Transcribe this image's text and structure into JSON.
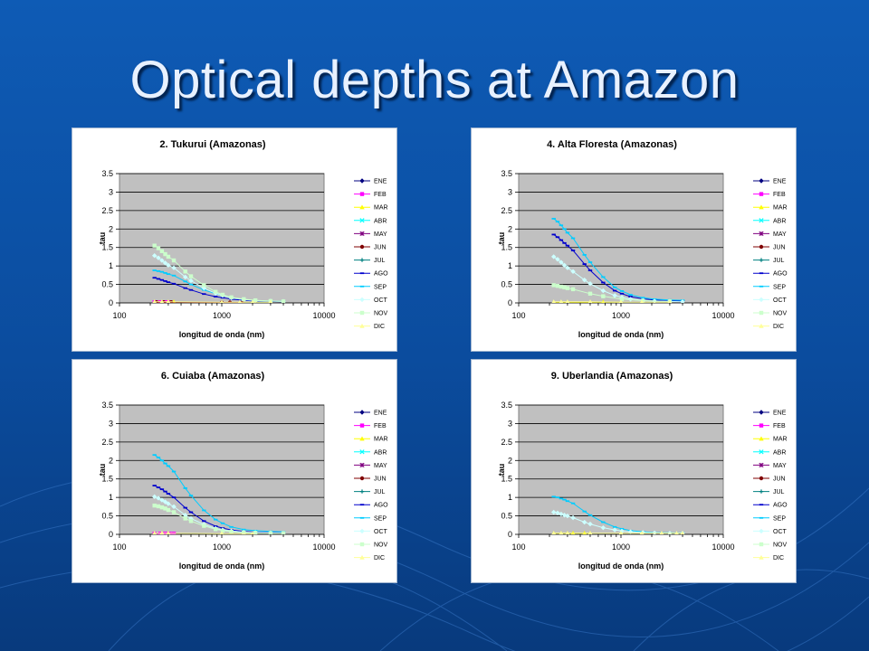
{
  "title": "Optical depths at Amazon",
  "colors": {
    "background": "#0b4c9e",
    "title_text": "#e8f1ff",
    "plot_area": "#c0c0c0"
  },
  "chart_data": [
    {
      "type": "scatter",
      "title": "2. Tukurui (Amazonas)",
      "xlabel": "longitud de onda (nm)",
      "ylabel": "tau",
      "xscale": "log",
      "xlim": [
        100,
        10000
      ],
      "ylim": [
        0,
        3.5
      ],
      "x_ticks": [
        "100",
        "1000",
        "10000"
      ],
      "y_ticks": [
        "0",
        "0.5",
        "1",
        "1.5",
        "2",
        "2.5",
        "3",
        "3.5"
      ],
      "legend": [
        "ENE",
        "FEB",
        "MAR",
        "ABR",
        "MAY",
        "JUN",
        "JUL",
        "AGO",
        "SEP",
        "OCT",
        "NOV",
        "DIC"
      ],
      "legend_position": "right",
      "series": [
        {
          "name": "FEB",
          "color": "#ff00ff",
          "marker": "square",
          "x": [
            220,
            250,
            280,
            300
          ],
          "values": [
            0.02,
            0.02,
            0.02,
            0.02
          ]
        },
        {
          "name": "MAR",
          "color": "#ffff00",
          "marker": "triangle",
          "x": [
            220,
            260,
            300,
            340
          ],
          "values": [
            0.03,
            0.03,
            0.03,
            0.03
          ]
        },
        {
          "name": "JUN",
          "color": "#800000",
          "marker": "circle",
          "x": [
            230,
            270,
            320,
            1000,
            1200,
            1600
          ],
          "values": [
            0.02,
            0.02,
            0.02,
            0.01,
            0.01,
            0.01
          ]
        },
        {
          "name": "AGO",
          "color": "#0000cc",
          "marker": "dash",
          "x": [
            220,
            240,
            260,
            280,
            300,
            340,
            440,
            500,
            670,
            870,
            1020,
            1240,
            1640,
            2130,
            3000,
            4000
          ],
          "values": [
            0.68,
            0.65,
            0.62,
            0.59,
            0.56,
            0.52,
            0.4,
            0.35,
            0.24,
            0.17,
            0.14,
            0.1,
            0.07,
            0.05,
            0.04,
            0.03
          ]
        },
        {
          "name": "SEP",
          "color": "#00ccff",
          "marker": "dash",
          "x": [
            220,
            240,
            260,
            280,
            300,
            340,
            440,
            500,
            670,
            870,
            1020,
            1240,
            1640,
            2130,
            3000,
            4000
          ],
          "values": [
            0.88,
            0.86,
            0.84,
            0.81,
            0.78,
            0.74,
            0.58,
            0.5,
            0.35,
            0.25,
            0.2,
            0.14,
            0.09,
            0.06,
            0.05,
            0.04
          ]
        },
        {
          "name": "OCT",
          "color": "#ccffff",
          "marker": "diamond",
          "x": [
            220,
            240,
            260,
            280,
            300,
            340,
            440,
            500,
            670,
            870,
            1020,
            1240,
            1640,
            2130,
            3000,
            4000
          ],
          "values": [
            1.28,
            1.22,
            1.15,
            1.08,
            1.02,
            0.95,
            0.7,
            0.6,
            0.4,
            0.26,
            0.2,
            0.14,
            0.09,
            0.06,
            0.05,
            0.04
          ]
        },
        {
          "name": "NOV",
          "color": "#ccffcc",
          "marker": "square",
          "x": [
            220,
            240,
            260,
            280,
            300,
            340,
            440,
            500,
            670,
            870,
            1020,
            1240,
            1640,
            2130,
            3000,
            4000
          ],
          "values": [
            1.55,
            1.48,
            1.4,
            1.32,
            1.25,
            1.15,
            0.85,
            0.72,
            0.48,
            0.3,
            0.22,
            0.15,
            0.1,
            0.07,
            0.05,
            0.04
          ]
        },
        {
          "name": "DIC",
          "color": "#ffff99",
          "marker": "triangle",
          "x": [
            220,
            260,
            300,
            1000,
            1500,
            2000,
            3000
          ],
          "values": [
            0.03,
            0.03,
            0.03,
            0.02,
            0.02,
            0.02,
            0.02
          ]
        }
      ]
    },
    {
      "type": "scatter",
      "title": "4. Alta Floresta (Amazonas)",
      "xlabel": "longitud de onda (nm)",
      "ylabel": "tau",
      "xscale": "log",
      "xlim": [
        100,
        10000
      ],
      "ylim": [
        0,
        3.5
      ],
      "x_ticks": [
        "100",
        "1000",
        "10000"
      ],
      "y_ticks": [
        "0",
        "0.5",
        "1",
        "1.5",
        "2",
        "2.5",
        "3",
        "3.5"
      ],
      "legend": [
        "ENE",
        "FEB",
        "MAR",
        "ABR",
        "MAY",
        "JUN",
        "JUL",
        "AGO",
        "SEP",
        "OCT",
        "NOV",
        "DIC"
      ],
      "legend_position": "right",
      "series": [
        {
          "name": "MAR",
          "color": "#ffff00",
          "marker": "triangle",
          "x": [
            220,
            260,
            300,
            500,
            670,
            1000
          ],
          "values": [
            0.02,
            0.02,
            0.02,
            0.02,
            0.02,
            0.02
          ]
        },
        {
          "name": "AGO",
          "color": "#0000cc",
          "marker": "dash",
          "x": [
            220,
            240,
            260,
            280,
            300,
            340,
            440,
            500,
            670,
            870,
            1020,
            1240,
            1640,
            2130,
            3000,
            4000
          ],
          "values": [
            1.85,
            1.78,
            1.7,
            1.62,
            1.55,
            1.42,
            1.05,
            0.88,
            0.55,
            0.33,
            0.25,
            0.17,
            0.11,
            0.08,
            0.06,
            0.05
          ]
        },
        {
          "name": "SEP",
          "color": "#00ccff",
          "marker": "dash",
          "x": [
            220,
            240,
            260,
            280,
            300,
            340,
            440,
            500,
            670,
            870,
            1020,
            1240,
            1640,
            2130,
            3000,
            4000
          ],
          "values": [
            2.28,
            2.2,
            2.1,
            2.0,
            1.9,
            1.75,
            1.3,
            1.1,
            0.7,
            0.42,
            0.32,
            0.22,
            0.14,
            0.1,
            0.08,
            0.07
          ]
        },
        {
          "name": "OCT",
          "color": "#ccffff",
          "marker": "diamond",
          "x": [
            220,
            240,
            260,
            280,
            300,
            340,
            440,
            500,
            670,
            870,
            1020,
            1240,
            1640,
            2130,
            3000,
            4000
          ],
          "values": [
            1.25,
            1.18,
            1.1,
            1.02,
            0.95,
            0.85,
            0.62,
            0.52,
            0.33,
            0.2,
            0.15,
            0.1,
            0.07,
            0.05,
            0.04,
            0.03
          ]
        },
        {
          "name": "NOV",
          "color": "#ccffcc",
          "marker": "square",
          "x": [
            220,
            240,
            260,
            280,
            300,
            340,
            500,
            670,
            1020,
            1640,
            3000
          ],
          "values": [
            0.48,
            0.46,
            0.44,
            0.42,
            0.4,
            0.37,
            0.25,
            0.18,
            0.1,
            0.06,
            0.04
          ]
        },
        {
          "name": "DIC",
          "color": "#ffff99",
          "marker": "triangle",
          "x": [
            220,
            260,
            300,
            500,
            1000,
            1600,
            3000
          ],
          "values": [
            0.03,
            0.03,
            0.03,
            0.03,
            0.02,
            0.02,
            0.02
          ]
        }
      ]
    },
    {
      "type": "scatter",
      "title": "6. Cuiaba (Amazonas)",
      "xlabel": "longitud de onda (nm)",
      "ylabel": "tau",
      "xscale": "log",
      "xlim": [
        100,
        10000
      ],
      "ylim": [
        0,
        3.5
      ],
      "x_ticks": [
        "100",
        "1000",
        "10000"
      ],
      "y_ticks": [
        "0",
        "0.5",
        "1",
        "1.5",
        "2",
        "2.5",
        "3",
        "3.5"
      ],
      "legend": [
        "ENE",
        "FEB",
        "MAR",
        "ABR",
        "MAY",
        "JUN",
        "JUL",
        "AGO",
        "SEP",
        "OCT",
        "NOV",
        "DIC"
      ],
      "legend_position": "right",
      "series": [
        {
          "name": "FEB",
          "color": "#ff00ff",
          "marker": "square",
          "x": [
            220,
            250,
            280,
            310,
            340
          ],
          "values": [
            0.02,
            0.02,
            0.02,
            0.02,
            0.02
          ]
        },
        {
          "name": "MAR",
          "color": "#ffff00",
          "marker": "triangle",
          "x": [
            220,
            260,
            300
          ],
          "values": [
            0.03,
            0.03,
            0.03
          ]
        },
        {
          "name": "AGO",
          "color": "#0000cc",
          "marker": "dash",
          "x": [
            220,
            240,
            260,
            280,
            300,
            340,
            440,
            500,
            670,
            870,
            1020,
            1240,
            1640,
            2130,
            3000,
            4000
          ],
          "values": [
            1.32,
            1.27,
            1.22,
            1.16,
            1.1,
            1.0,
            0.72,
            0.6,
            0.36,
            0.22,
            0.17,
            0.12,
            0.08,
            0.06,
            0.05,
            0.04
          ]
        },
        {
          "name": "SEP",
          "color": "#00ccff",
          "marker": "dash",
          "x": [
            220,
            240,
            260,
            280,
            300,
            340,
            440,
            500,
            670,
            870,
            1020,
            1240,
            1640,
            2130,
            3000,
            4000
          ],
          "values": [
            2.15,
            2.08,
            2.0,
            1.92,
            1.85,
            1.7,
            1.25,
            1.05,
            0.65,
            0.4,
            0.3,
            0.2,
            0.13,
            0.1,
            0.08,
            0.07
          ]
        },
        {
          "name": "OCT",
          "color": "#ccffff",
          "marker": "diamond",
          "x": [
            220,
            240,
            260,
            280,
            300,
            340,
            440,
            500,
            670,
            870,
            1020,
            1240,
            1640,
            2130,
            3000,
            4000
          ],
          "values": [
            1.02,
            0.98,
            0.93,
            0.88,
            0.83,
            0.75,
            0.52,
            0.43,
            0.27,
            0.16,
            0.12,
            0.09,
            0.06,
            0.05,
            0.04,
            0.03
          ]
        },
        {
          "name": "NOV",
          "color": "#ccffcc",
          "marker": "square",
          "x": [
            220,
            240,
            260,
            280,
            300,
            340,
            440,
            500,
            670,
            870,
            1020,
            1240,
            1640,
            2130,
            3000,
            4000
          ],
          "values": [
            0.78,
            0.76,
            0.73,
            0.7,
            0.66,
            0.6,
            0.43,
            0.36,
            0.23,
            0.14,
            0.1,
            0.07,
            0.05,
            0.04,
            0.03,
            0.03
          ]
        },
        {
          "name": "DIC",
          "color": "#ffff99",
          "marker": "triangle",
          "x": [
            220,
            260,
            300,
            1000,
            2000
          ],
          "values": [
            0.03,
            0.03,
            0.03,
            0.02,
            0.02
          ]
        }
      ]
    },
    {
      "type": "scatter",
      "title": "9. Uberlandia (Amazonas)",
      "xlabel": "longitud de onda (nm)",
      "ylabel": "tau",
      "xscale": "log",
      "xlim": [
        100,
        10000
      ],
      "ylim": [
        0,
        3.5
      ],
      "x_ticks": [
        "100",
        "1000",
        "10000"
      ],
      "y_ticks": [
        "0",
        "0.5",
        "1",
        "1.5",
        "2",
        "2.5",
        "3",
        "3.5"
      ],
      "legend": [
        "ENE",
        "FEB",
        "MAR",
        "ABR",
        "MAY",
        "JUN",
        "JUL",
        "AGO",
        "SEP",
        "OCT",
        "NOV",
        "DIC"
      ],
      "legend_position": "right",
      "series": [
        {
          "name": "MAR",
          "color": "#ffff00",
          "marker": "triangle",
          "x": [
            220,
            260,
            300,
            340,
            440,
            500
          ],
          "values": [
            0.03,
            0.03,
            0.03,
            0.03,
            0.03,
            0.03
          ]
        },
        {
          "name": "SEP",
          "color": "#00ccff",
          "marker": "dash",
          "x": [
            220,
            240,
            260,
            280,
            300,
            340,
            440,
            500,
            670,
            870,
            1020,
            1240,
            1640,
            2130,
            3000,
            4000
          ],
          "values": [
            1.02,
            1.0,
            0.97,
            0.94,
            0.9,
            0.84,
            0.62,
            0.52,
            0.33,
            0.2,
            0.15,
            0.1,
            0.07,
            0.05,
            0.04,
            0.04
          ]
        },
        {
          "name": "OCT",
          "color": "#ccffff",
          "marker": "diamond",
          "x": [
            220,
            240,
            260,
            280,
            300,
            340,
            440,
            500,
            670,
            870,
            1020,
            1240,
            1640,
            2130,
            3000,
            4000
          ],
          "values": [
            0.6,
            0.58,
            0.55,
            0.52,
            0.5,
            0.45,
            0.33,
            0.28,
            0.18,
            0.12,
            0.09,
            0.07,
            0.05,
            0.04,
            0.03,
            0.03
          ]
        },
        {
          "name": "DIC",
          "color": "#ffff99",
          "marker": "triangle",
          "x": [
            220,
            260,
            300,
            500,
            1000,
            1600,
            2500,
            3500,
            4000
          ],
          "values": [
            0.03,
            0.03,
            0.03,
            0.03,
            0.03,
            0.03,
            0.03,
            0.03,
            0.03
          ]
        }
      ]
    }
  ]
}
